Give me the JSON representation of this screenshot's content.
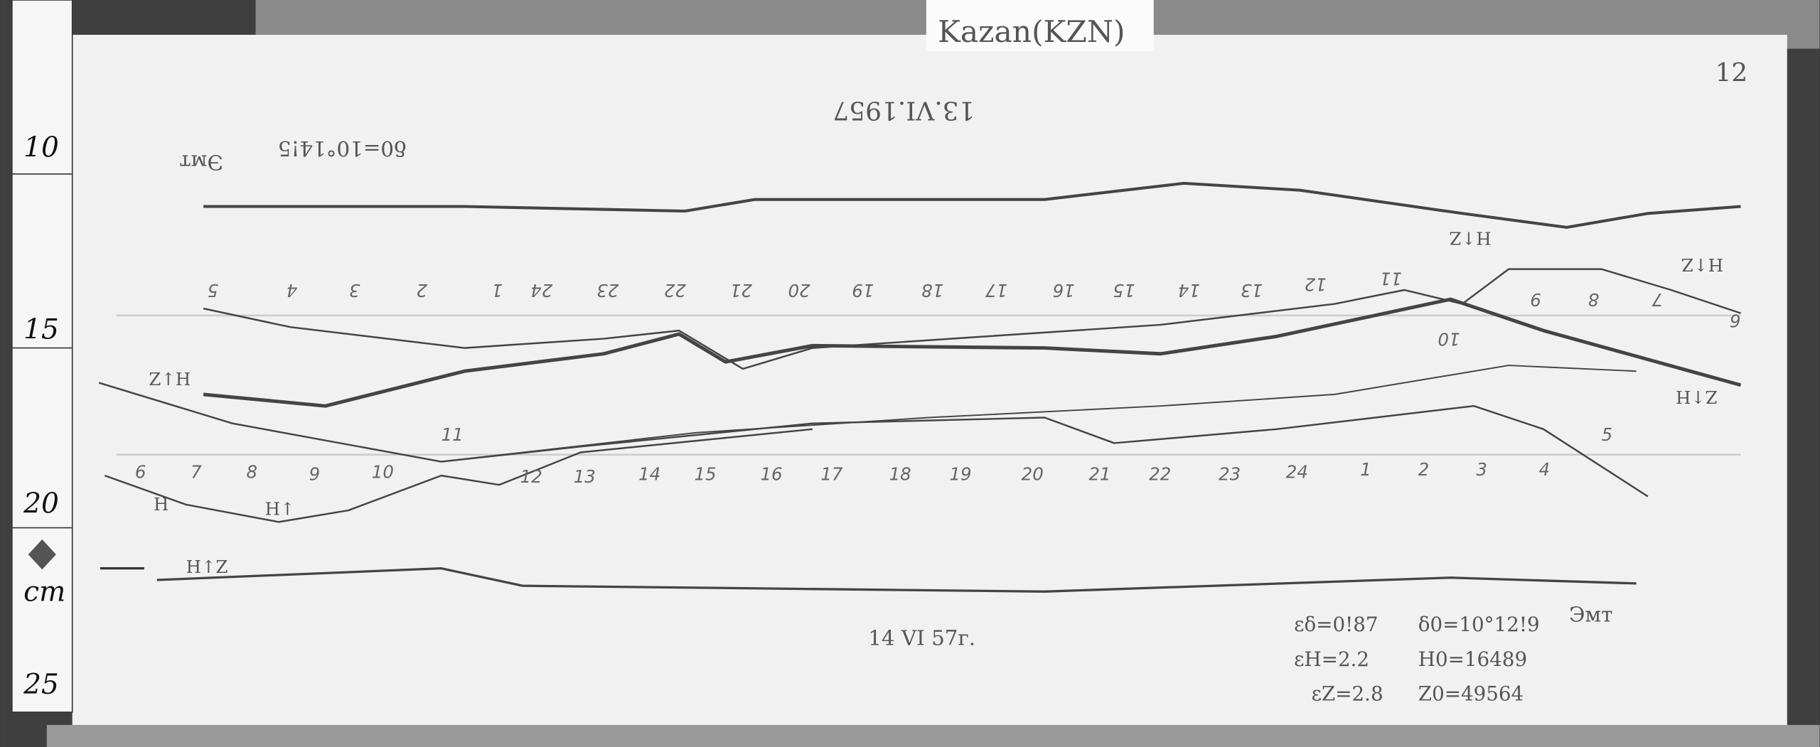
{
  "station_label": "Kazan(KZN)",
  "sheet_number": "12",
  "ruler": {
    "marks": [
      "10",
      "15",
      "20",
      "cm",
      "25"
    ]
  },
  "upper_record": {
    "date": "13.VI.1957",
    "declination_base": "δ0=10°14!5",
    "units_label": "Эмт",
    "hours": [
      "5",
      "4",
      "3",
      "2",
      "1",
      "24",
      "23",
      "22",
      "21",
      "20",
      "19",
      "18",
      "17",
      "16",
      "15",
      "14",
      "13",
      "12",
      "11",
      "10",
      "9",
      "8",
      "7",
      "6"
    ],
    "trace_labels": [
      "H↑Z",
      "H↑Z",
      "Z↑H"
    ]
  },
  "lower_record": {
    "date": "14 VI 57г.",
    "hours": [
      "6",
      "7",
      "8",
      "9",
      "10",
      "11",
      "12",
      "13",
      "14",
      "15",
      "16",
      "17",
      "18",
      "19",
      "20",
      "21",
      "22",
      "23",
      "24",
      "1",
      "2",
      "3",
      "4",
      "5"
    ],
    "trace_labels": [
      "Z↑H",
      "H↑",
      "H↑Z",
      "H"
    ],
    "units_label": "Эмт",
    "scale_values": [
      {
        "scale": "εδ=0!87",
        "base": "δ0=10°12!9"
      },
      {
        "scale": "εH=2.2",
        "base": "H0=16489"
      },
      {
        "scale": "εZ=2.8",
        "base": "Z0=49564"
      }
    ]
  },
  "colors": {
    "paper": "#f2f2f2",
    "trace": "#444444",
    "frame": "#3a3a3a"
  }
}
